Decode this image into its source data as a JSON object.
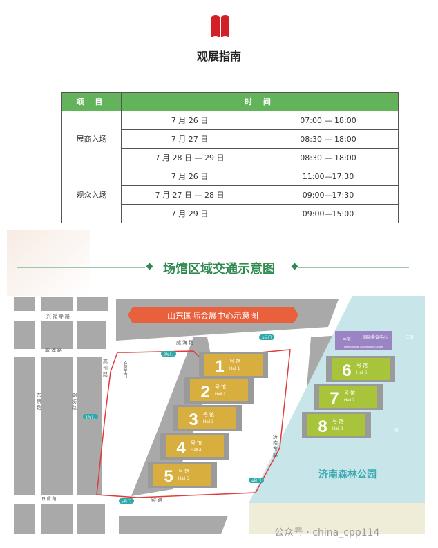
{
  "header": {
    "icon": "open-book-icon",
    "title": "观展指南",
    "accent": "#d31f26"
  },
  "schedule": {
    "headers": [
      "项 目",
      "时 间"
    ],
    "groups": [
      {
        "label": "展商入场",
        "rows": [
          [
            "7 月 26 日",
            "07:00 — 18:00"
          ],
          [
            "7 月 27 日",
            "08:30 — 18:00"
          ],
          [
            "7 月 28 日 — 29 日",
            "08:30 — 18:00"
          ]
        ]
      },
      {
        "label": "观众入场",
        "rows": [
          [
            "7 月 26 日",
            "11:00—17:30"
          ],
          [
            "7 月 27 日 — 28 日",
            "09:00—17:30"
          ],
          [
            "7 月 29 日",
            "09:00—15:00"
          ]
        ]
      }
    ],
    "header_color": "#63b35a"
  },
  "map_section": {
    "title": "场馆区域交通示意图",
    "banner": "山东国际会展中心示意图",
    "halls": [
      {
        "num": "1",
        "cn": "号 馆",
        "en": "Hall 1"
      },
      {
        "num": "2",
        "cn": "号 馆",
        "en": "Hall 2"
      },
      {
        "num": "3",
        "cn": "号 馆",
        "en": "Hall 3"
      },
      {
        "num": "4",
        "cn": "号 馆",
        "en": "Hall 4"
      },
      {
        "num": "5",
        "cn": "号 馆",
        "en": "Hall 5"
      },
      {
        "num": "6",
        "cn": "号 馆",
        "en": "Hall 6"
      },
      {
        "num": "7",
        "cn": "号 馆",
        "en": "Hall 7"
      },
      {
        "num": "8",
        "cn": "号 馆",
        "en": "Hall 8"
      }
    ],
    "intl_center": {
      "floor": "三层",
      "cn": "国际会议中心",
      "en": "International Convention Center"
    },
    "gates": [
      "1号门",
      "2号门",
      "3号门",
      "4号门",
      "5号门"
    ],
    "roads": {
      "xingfusi": "兴 福 寺 路",
      "weihai_left": "威 海 路",
      "weihai_top": "威 海 路",
      "dongjing": "东 京 路",
      "hupo": "湖 坊 路",
      "gaozhou": "高 州 路",
      "rizhao_left": "日 照 路",
      "rizhao": "日 照 路",
      "jinan_east": "济 南 东 路"
    },
    "main_gate": "会展主门",
    "park": "济南森林公园",
    "floor_labels": [
      "三层",
      "二层"
    ],
    "hall_color": "#d8ae3e",
    "hall_green": "#a8c43a",
    "intl_color": "#9a84c4",
    "banner_color": "#e8603c",
    "water_color": "#c8e6ea"
  },
  "watermark": "公众号 · china_cpp114"
}
